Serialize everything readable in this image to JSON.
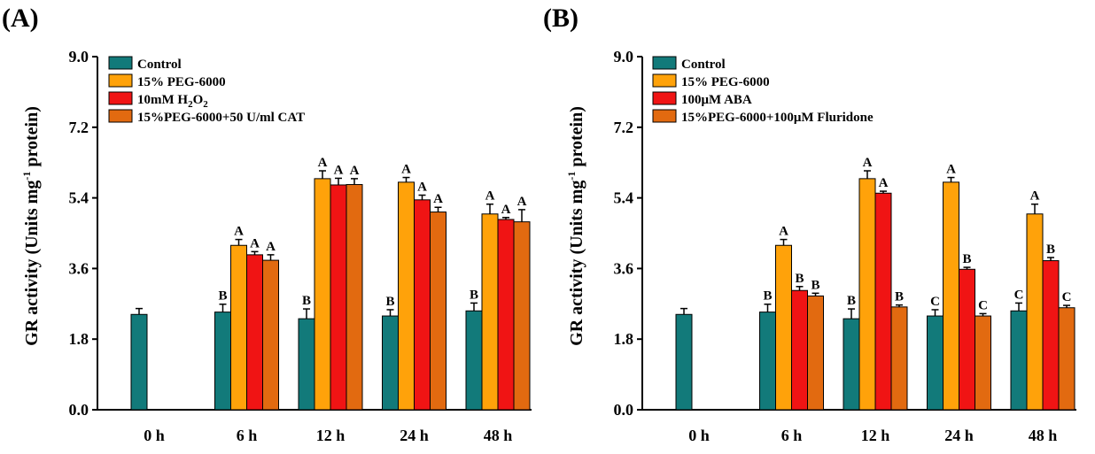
{
  "colors": {
    "Control": "#127a7a",
    "PEG": "#ffa20a",
    "Treat3": "#f01414",
    "Treat4": "#e26a10",
    "axis": "#000000"
  },
  "chart_data": [
    {
      "type": "bar",
      "panel_label": "(A)",
      "ylabel_main": "GR activity (Units mg",
      "ylabel_sup": "-1",
      "ylabel_tail": " protein)",
      "ylim": [
        0,
        9
      ],
      "yticks": [
        "0.0",
        "1.8",
        "3.6",
        "5.4",
        "7.2",
        "9.0"
      ],
      "ytick_values": [
        0,
        1.8,
        3.6,
        5.4,
        7.2,
        9.0
      ],
      "categories": [
        "0 h",
        "6 h",
        "12 h",
        "24 h",
        "48 h"
      ],
      "legend": [
        {
          "base": "Control",
          "sub": "",
          "tail": ""
        },
        {
          "base": "15% PEG-6000",
          "sub": "",
          "tail": ""
        },
        {
          "base": "10mM H",
          "sub": "2",
          "tail": "O",
          "sub2": "2"
        },
        {
          "base": "15%PEG-6000+50 U/ml CAT",
          "sub": "",
          "tail": ""
        }
      ],
      "series": [
        {
          "name": "Control",
          "color_key": "Control",
          "values": [
            2.43,
            2.49,
            2.32,
            2.39,
            2.52
          ],
          "errors": [
            0.15,
            0.2,
            0.25,
            0.16,
            0.2
          ],
          "letters": [
            "",
            "B",
            "B",
            "B",
            "B"
          ]
        },
        {
          "name": "15% PEG-6000",
          "color_key": "PEG",
          "values": [
            null,
            4.19,
            5.89,
            5.8,
            4.99
          ],
          "errors": [
            null,
            0.15,
            0.2,
            0.12,
            0.25
          ],
          "letters": [
            "",
            "A",
            "A",
            "A",
            "A"
          ]
        },
        {
          "name": "10mM H2O2",
          "color_key": "Treat3",
          "values": [
            null,
            3.95,
            5.73,
            5.35,
            4.85
          ],
          "errors": [
            null,
            0.08,
            0.17,
            0.12,
            0.05
          ],
          "letters": [
            "",
            "A",
            "A",
            "A",
            "A"
          ]
        },
        {
          "name": "15%PEG-6000+50 U/ml CAT",
          "color_key": "Treat4",
          "values": [
            null,
            3.81,
            5.74,
            5.04,
            4.79
          ],
          "errors": [
            null,
            0.14,
            0.15,
            0.12,
            0.31
          ],
          "letters": [
            "",
            "A",
            "A",
            "A",
            "A"
          ]
        }
      ]
    },
    {
      "type": "bar",
      "panel_label": "(B)",
      "ylabel_main": "GR activity (Units mg",
      "ylabel_sup": "-1",
      "ylabel_tail": " protein)",
      "ylim": [
        0,
        9
      ],
      "yticks": [
        "0.0",
        "1.8",
        "3.6",
        "5.4",
        "7.2",
        "9.0"
      ],
      "ytick_values": [
        0,
        1.8,
        3.6,
        5.4,
        7.2,
        9.0
      ],
      "categories": [
        "0 h",
        "6 h",
        "12 h",
        "24 h",
        "48 h"
      ],
      "legend": [
        {
          "base": "Control",
          "sub": "",
          "tail": ""
        },
        {
          "base": "15% PEG-6000",
          "sub": "",
          "tail": ""
        },
        {
          "base": "100μM ABA",
          "sub": "",
          "tail": ""
        },
        {
          "base": "15%PEG-6000+100μM Fluridone",
          "sub": "",
          "tail": ""
        }
      ],
      "series": [
        {
          "name": "Control",
          "color_key": "Control",
          "values": [
            2.43,
            2.49,
            2.32,
            2.39,
            2.52
          ],
          "errors": [
            0.15,
            0.2,
            0.25,
            0.16,
            0.2
          ],
          "letters": [
            "",
            "B",
            "B",
            "C",
            "C"
          ]
        },
        {
          "name": "15% PEG-6000",
          "color_key": "PEG",
          "values": [
            null,
            4.19,
            5.89,
            5.8,
            4.99
          ],
          "errors": [
            null,
            0.15,
            0.2,
            0.12,
            0.25
          ],
          "letters": [
            "",
            "A",
            "A",
            "A",
            "A"
          ]
        },
        {
          "name": "100μM ABA",
          "color_key": "Treat3",
          "values": [
            null,
            3.04,
            5.52,
            3.58,
            3.8
          ],
          "errors": [
            null,
            0.1,
            0.05,
            0.05,
            0.08
          ],
          "letters": [
            "",
            "B",
            "A",
            "B",
            "B"
          ]
        },
        {
          "name": "15%PEG-6000+100μM Fluridone",
          "color_key": "Treat4",
          "values": [
            null,
            2.9,
            2.62,
            2.39,
            2.6
          ],
          "errors": [
            null,
            0.07,
            0.05,
            0.06,
            0.06
          ],
          "letters": [
            "",
            "B",
            "B",
            "C",
            "C"
          ]
        }
      ]
    }
  ]
}
